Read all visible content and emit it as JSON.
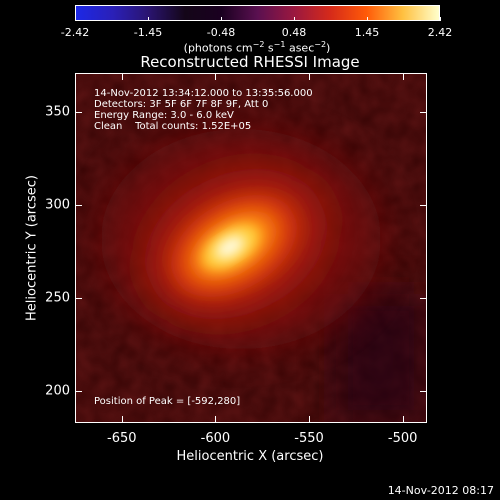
{
  "colorbar": {
    "tick_labels": [
      "-2.42",
      "-1.45",
      "-0.48",
      "0.48",
      "1.45",
      "2.42"
    ],
    "units_text": "(photons cm",
    "units_exp1": "−2",
    "units_mid": " s",
    "units_exp2": "−1",
    "units_end": " asec",
    "units_exp3": "−2",
    "units_close": ")"
  },
  "image": {
    "title": "Reconstructed RHESSI Image",
    "annotations": [
      "14-Nov-2012 13:34:12.000 to 13:35:56.000",
      "Detectors: 3F 5F 6F 7F 8F 9F, Att 0",
      "Energy Range: 3.0 - 6.0 keV",
      "Clean    Total counts: 1.52E+05"
    ],
    "peak_label": "Position of Peak = [-592,280]",
    "xlabel": "Heliocentric X (arcsec)",
    "ylabel": "Heliocentric Y (arcsec)",
    "x_ticks": [
      "-650",
      "-600",
      "-550",
      "-500"
    ],
    "y_ticks": [
      "350",
      "300",
      "250",
      "200"
    ],
    "x_tick_values": [
      -650,
      -600,
      -550,
      -500
    ],
    "y_tick_values": [
      350,
      300,
      250,
      200
    ],
    "x_range": [
      -675,
      -487
    ],
    "y_range": [
      183,
      371
    ],
    "peak": [
      -592,
      280
    ]
  },
  "footer": {
    "timestamp": "14-Nov-2012 08:17"
  },
  "colors": {
    "background": "#000000",
    "foreground": "#ffffff"
  }
}
